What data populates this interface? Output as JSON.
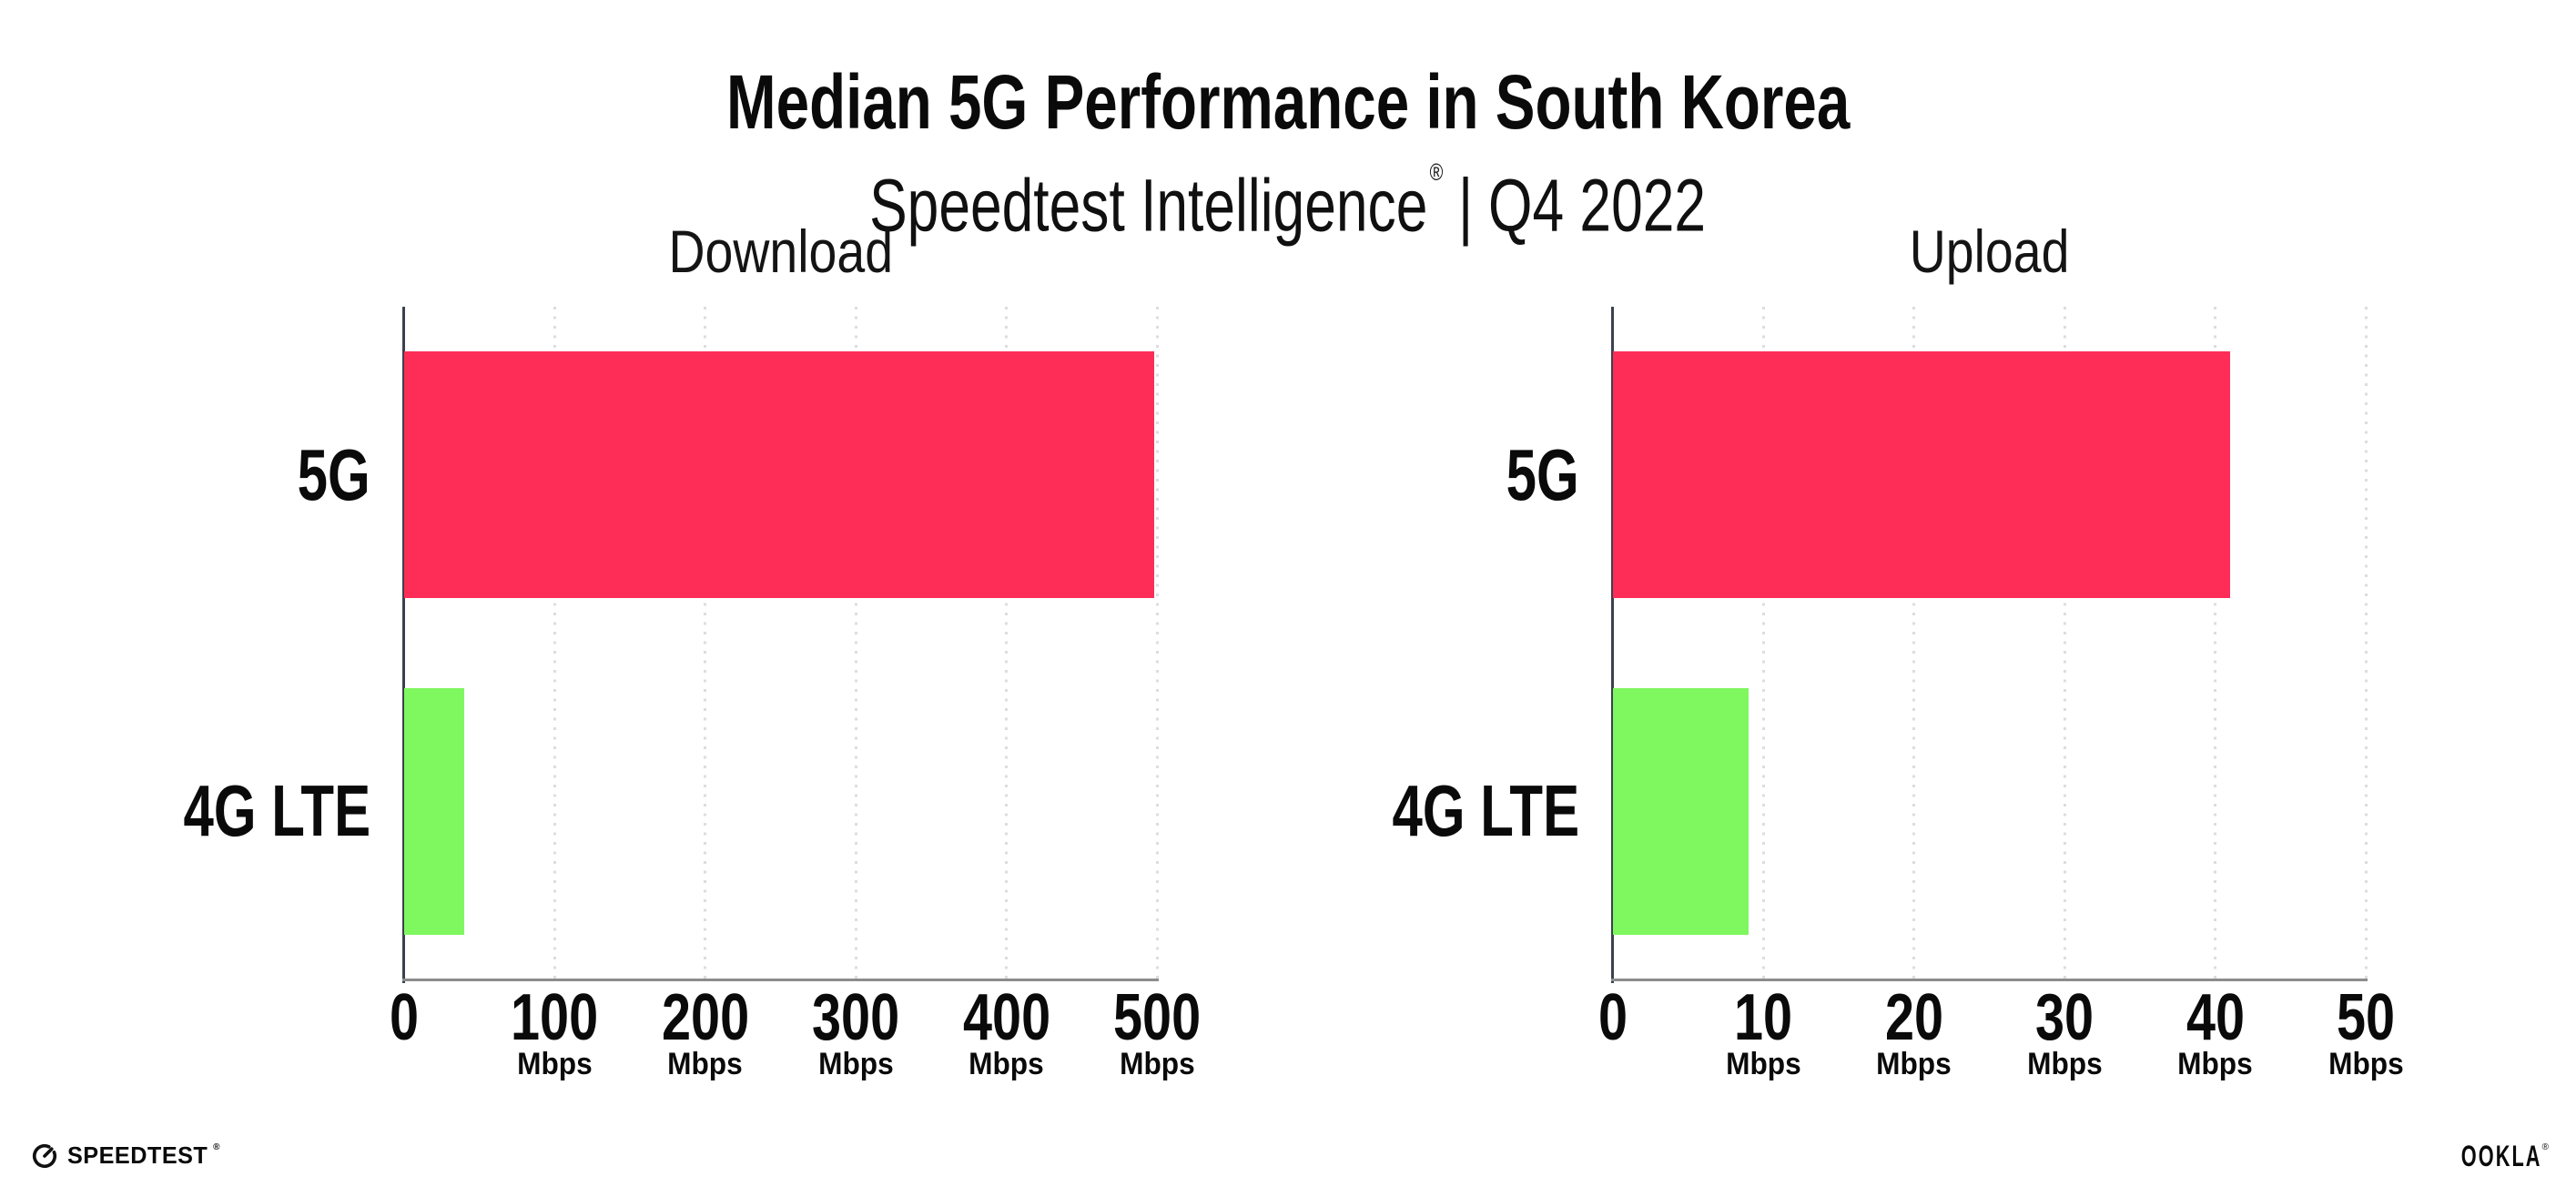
{
  "title": "Median 5G Performance in South Korea",
  "subtitle": {
    "product": "Speedtest Intelligence",
    "registered_mark": "®",
    "separator": "|",
    "period": "Q4 2022"
  },
  "colors": {
    "bar_5g": "#FD2D58",
    "bar_4g_lte": "#7FF75F",
    "gridline": "#DCDCE5",
    "y_axis_line": "#3A4150",
    "x_axis_line": "#8C8C8C",
    "text": "#0A0A0A"
  },
  "chart_data": [
    {
      "type": "bar",
      "orientation": "horizontal",
      "title": "Download",
      "categories": [
        "5G",
        "4G LTE"
      ],
      "values": [
        498,
        40
      ],
      "unit": "Mbps",
      "xlim": [
        0,
        500
      ],
      "xticks": [
        0,
        100,
        200,
        300,
        400,
        500
      ],
      "tick_unit_label": "Mbps",
      "bar_colors": [
        "#FD2D58",
        "#7FF75F"
      ],
      "grid": "vertical-dotted",
      "legend": "none"
    },
    {
      "type": "bar",
      "orientation": "horizontal",
      "title": "Upload",
      "categories": [
        "5G",
        "4G LTE"
      ],
      "values": [
        41,
        9
      ],
      "unit": "Mbps",
      "xlim": [
        0,
        50
      ],
      "xticks": [
        0,
        10,
        20,
        30,
        40,
        50
      ],
      "tick_unit_label": "Mbps",
      "bar_colors": [
        "#FD2D58",
        "#7FF75F"
      ],
      "grid": "vertical-dotted",
      "legend": "none"
    }
  ],
  "footer": {
    "speedtest_label": "SPEEDTEST",
    "speedtest_mark": "®",
    "ookla_label": "OOKLA",
    "ookla_mark": "®"
  }
}
